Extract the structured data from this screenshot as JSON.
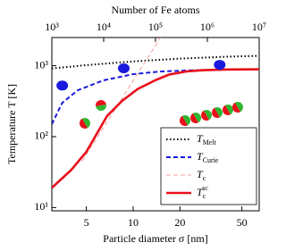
{
  "chart_data": {
    "type": "line",
    "x_title": "Particle diameter σ [nm]",
    "x2_title": "Number of Fe atoms",
    "y_title": "Temperature T [K]",
    "log_x": true,
    "log_y": true,
    "xlim": [
      3,
      64.6
    ],
    "xticks": [
      5,
      10,
      20,
      50
    ],
    "x2lim": [
      1000,
      10000000
    ],
    "x2ticks": [
      {
        "value": 1000,
        "label": "10³"
      },
      {
        "value": 10000,
        "label": "10⁴"
      },
      {
        "value": 100000,
        "label": "10⁵"
      },
      {
        "value": 1000000,
        "label": "10⁶"
      },
      {
        "value": 10000000,
        "label": "10⁷"
      }
    ],
    "ylim": [
      9,
      2500
    ],
    "yticks": [
      {
        "value": 10,
        "label": "10¹"
      },
      {
        "value": 100,
        "label": "10²"
      },
      {
        "value": 1000,
        "label": "10³"
      }
    ],
    "legend": "lower right",
    "series": [
      {
        "name": "TMelt",
        "color": "#000000",
        "style": "dotted",
        "x": [
          3,
          5,
          10,
          20,
          40,
          64.6
        ],
        "values": [
          915,
          1020,
          1150,
          1260,
          1340,
          1380
        ]
      },
      {
        "name": "TCurie",
        "color": "#1a1adf",
        "style": "dashed",
        "x": [
          3,
          3.5,
          4.4,
          6.4,
          10,
          15,
          25,
          40,
          64.6
        ],
        "values": [
          150,
          300,
          450,
          620,
          760,
          830,
          865,
          880,
          890
        ]
      },
      {
        "name": "Tc",
        "color": "#f4a0a0",
        "style": "dashed",
        "x": [
          4.7,
          15
        ],
        "values": [
          45,
          2500
        ]
      },
      {
        "name": "Tcsc",
        "color": "#e8101a",
        "style": "solid",
        "x": [
          3,
          4,
          5,
          6.8,
          8.5,
          10.7,
          14,
          17,
          22,
          28,
          40,
          64.6
        ],
        "values": [
          19,
          34,
          61,
          196,
          320,
          470,
          630,
          750,
          830,
          865,
          885,
          890
        ]
      }
    ],
    "points": {
      "color": "#1a1adf",
      "x": [
        3.5,
        8.7,
        36
      ],
      "values": [
        525,
        920,
        1030
      ]
    }
  }
}
